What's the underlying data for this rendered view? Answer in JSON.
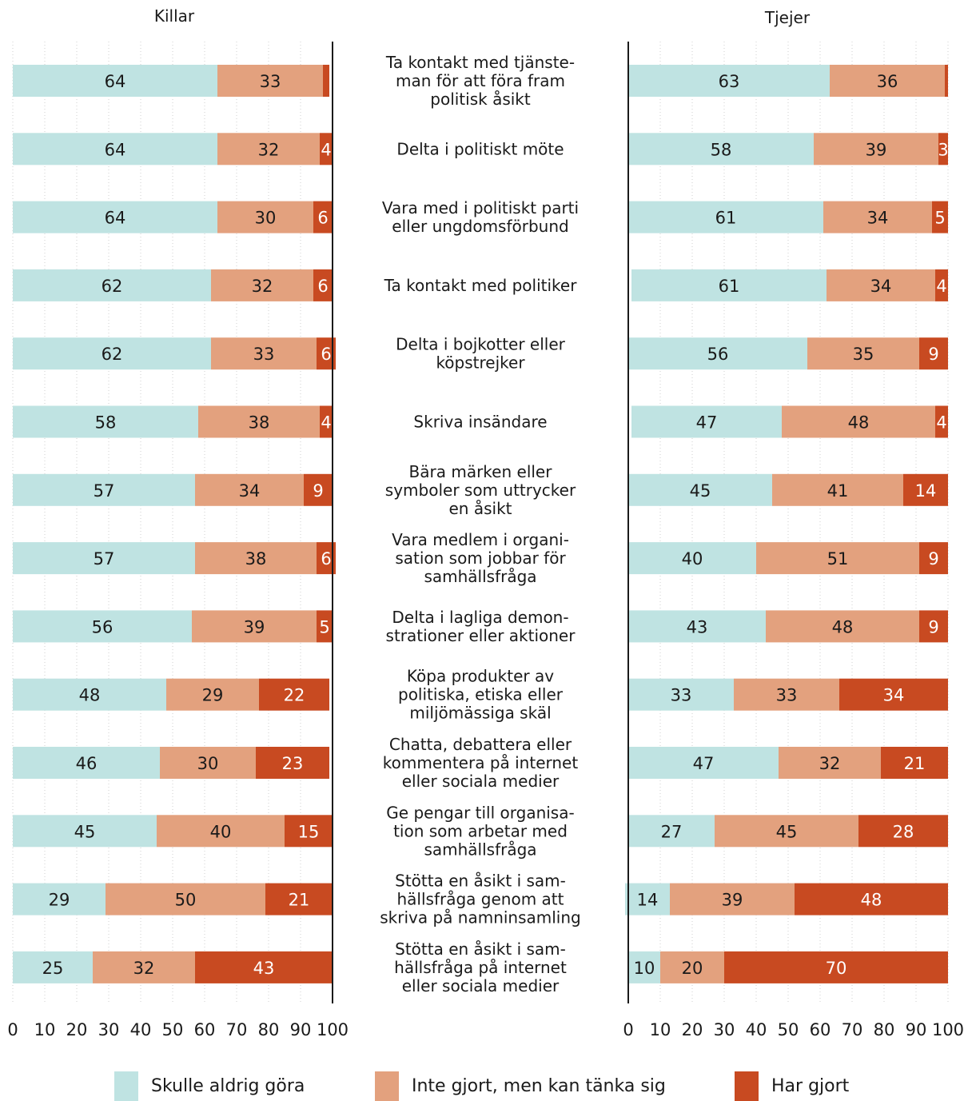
{
  "chart_data": {
    "type": "bar",
    "orientation": "horizontal",
    "stacked": true,
    "xlim": [
      0,
      100
    ],
    "x_ticks": [
      "0",
      "10",
      "20",
      "30",
      "40",
      "50",
      "60",
      "70",
      "80",
      "90",
      "100"
    ],
    "grid": "vertical dotted",
    "colors": {
      "Skulle aldrig göra": "#bfe3e2",
      "Inte gjort, men kan tänka sig": "#e3a17e",
      "Har gjort": "#c84a21"
    },
    "legend": [
      "Skulle aldrig göra",
      "Inte gjort, men kan tänka sig",
      "Har gjort"
    ],
    "categories": [
      [
        "Ta kontakt med tjänste-",
        "man för att föra fram",
        "politisk åsikt"
      ],
      [
        "Delta i politiskt möte"
      ],
      [
        "Vara med i politiskt parti",
        "eller ungdomsförbund"
      ],
      [
        "Ta kontakt med politiker"
      ],
      [
        "Delta i bojkotter eller",
        "köpstrejker"
      ],
      [
        "Skriva insändare"
      ],
      [
        "Bära märken eller",
        "symboler som uttrycker",
        "en åsikt"
      ],
      [
        "Vara medlem i organi-",
        "sation som jobbar för",
        "samhällsfråga"
      ],
      [
        "Delta i lagliga demon-",
        "strationer eller aktioner"
      ],
      [
        "Köpa produkter av",
        "politiska, etiska eller",
        "miljömässiga skäl"
      ],
      [
        "Chatta, debattera eller",
        "kommentera på internet",
        "eller sociala medier"
      ],
      [
        "Ge pengar till organisa-",
        "tion som arbetar med",
        "samhällsfråga"
      ],
      [
        "Stötta en åsikt i sam-",
        "hällsfråga genom att",
        "skriva på namninsamling"
      ],
      [
        "Stötta en åsikt i sam-",
        "hällsfråga på internet",
        "eller sociala medier"
      ]
    ],
    "panels": [
      {
        "title": "Killar",
        "series": [
          {
            "name": "Skulle aldrig göra",
            "values": [
              64,
              64,
              64,
              62,
              62,
              58,
              57,
              57,
              56,
              48,
              46,
              45,
              29,
              25
            ]
          },
          {
            "name": "Inte gjort, men kan tänka sig",
            "values": [
              33,
              32,
              30,
              32,
              33,
              38,
              34,
              38,
              39,
              29,
              30,
              40,
              50,
              32
            ]
          },
          {
            "name": "Har gjort",
            "values": [
              2,
              4,
              6,
              6,
              6,
              4,
              9,
              6,
              5,
              22,
              23,
              15,
              21,
              43
            ]
          }
        ],
        "segment_labels": [
          [
            "64",
            "33",
            ""
          ],
          [
            "64",
            "32",
            "4"
          ],
          [
            "64",
            "30",
            "6"
          ],
          [
            "62",
            "32",
            "6"
          ],
          [
            "62",
            "33",
            "6"
          ],
          [
            "58",
            "38",
            "4"
          ],
          [
            "57",
            "34",
            "9"
          ],
          [
            "57",
            "38",
            "6"
          ],
          [
            "56",
            "39",
            "5"
          ],
          [
            "48",
            "29",
            "22"
          ],
          [
            "46",
            "30",
            "23"
          ],
          [
            "45",
            "40",
            "15"
          ],
          [
            "29",
            "50",
            "21"
          ],
          [
            "25",
            "32",
            "43"
          ]
        ]
      },
      {
        "title": "Tjejer",
        "series": [
          {
            "name": "Har gjort",
            "values": [
              1,
              3,
              5,
              4,
              9,
              4,
              14,
              9,
              9,
              34,
              21,
              28,
              48,
              70
            ]
          },
          {
            "name": "Inte gjort, men kan tänka sig",
            "values": [
              36,
              39,
              34,
              34,
              35,
              48,
              41,
              51,
              48,
              33,
              32,
              45,
              39,
              20
            ]
          },
          {
            "name": "Skulle aldrig göra",
            "values": [
              63,
              58,
              61,
              61,
              56,
              47,
              45,
              40,
              43,
              33,
              47,
              27,
              14,
              10
            ]
          }
        ],
        "segment_labels": [
          [
            "",
            "36",
            "63"
          ],
          [
            "3",
            "39",
            "58"
          ],
          [
            "5",
            "34",
            "61"
          ],
          [
            "4",
            "34",
            "61"
          ],
          [
            "9",
            "35",
            "56"
          ],
          [
            "4",
            "48",
            "47"
          ],
          [
            "14",
            "41",
            "45"
          ],
          [
            "9",
            "51",
            "40"
          ],
          [
            "9",
            "48",
            "43"
          ],
          [
            "34",
            "33",
            "33"
          ],
          [
            "21",
            "32",
            "47"
          ],
          [
            "28",
            "45",
            "27"
          ],
          [
            "48",
            "39",
            "14"
          ],
          [
            "70",
            "20",
            "10"
          ]
        ]
      }
    ]
  }
}
